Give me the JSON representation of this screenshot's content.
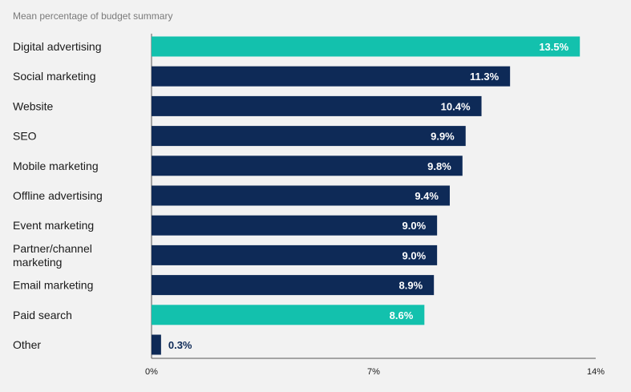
{
  "chart_data": {
    "type": "bar",
    "orientation": "horizontal",
    "title": "Mean percentage of budget summary",
    "categories": [
      "Digital advertising",
      "Social marketing",
      "Website",
      "SEO",
      "Mobile marketing",
      "Offline advertising",
      "Event marketing",
      "Partner/channel marketing",
      "Email marketing",
      "Paid search",
      "Other"
    ],
    "category_lines": [
      [
        "Digital advertising"
      ],
      [
        "Social marketing"
      ],
      [
        "Website"
      ],
      [
        "SEO"
      ],
      [
        "Mobile marketing"
      ],
      [
        "Offline advertising"
      ],
      [
        "Event marketing"
      ],
      [
        "Partner/channel",
        "marketing"
      ],
      [
        "Email marketing"
      ],
      [
        "Paid search"
      ],
      [
        "Other"
      ]
    ],
    "values": [
      13.5,
      11.3,
      10.4,
      9.9,
      9.8,
      9.4,
      9.0,
      9.0,
      8.9,
      8.6,
      0.3
    ],
    "data_labels": [
      "13.5%",
      "11.3%",
      "10.4%",
      "9.9%",
      "9.8%",
      "9.4%",
      "9.0%",
      "9.0%",
      "8.9%",
      "8.6%",
      "0.3%"
    ],
    "highlighted": [
      true,
      false,
      false,
      false,
      false,
      false,
      false,
      false,
      false,
      true,
      false
    ],
    "xlim": [
      0,
      14
    ],
    "x_ticks": [
      0,
      7,
      14
    ],
    "x_tick_labels": [
      "0%",
      "7%",
      "14%"
    ],
    "grid": false,
    "legend": "none",
    "colors": {
      "primary": "#0e2a57",
      "highlight": "#13c1ad",
      "background": "#f2f2f2",
      "text": "#1a1a1a",
      "title": "#7a7a7a",
      "axis": "#555555"
    }
  }
}
